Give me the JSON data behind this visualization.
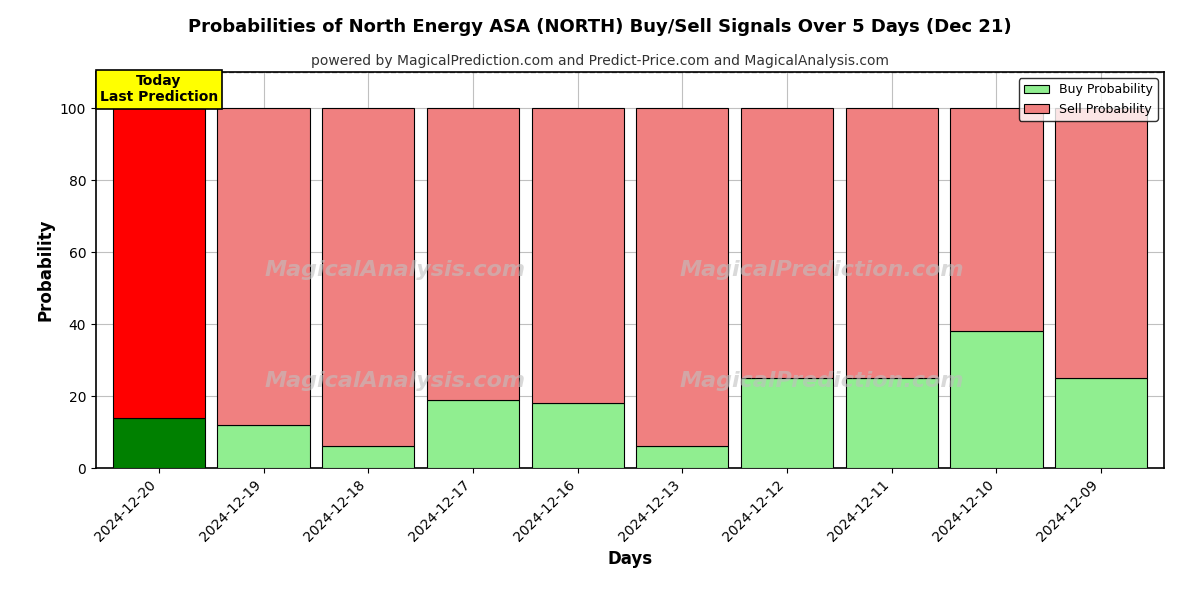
{
  "title": "Probabilities of North Energy ASA (NORTH) Buy/Sell Signals Over 5 Days (Dec 21)",
  "subtitle": "powered by MagicalPrediction.com and Predict-Price.com and MagicalAnalysis.com",
  "xlabel": "Days",
  "ylabel": "Probability",
  "categories": [
    "2024-12-20",
    "2024-12-19",
    "2024-12-18",
    "2024-12-17",
    "2024-12-16",
    "2024-12-13",
    "2024-12-12",
    "2024-12-11",
    "2024-12-10",
    "2024-12-09"
  ],
  "buy_values": [
    14,
    12,
    6,
    19,
    18,
    6,
    25,
    25,
    38,
    25
  ],
  "sell_values": [
    86,
    88,
    94,
    81,
    82,
    94,
    75,
    75,
    62,
    75
  ],
  "today_idx": 0,
  "buy_color_today": "#008000",
  "sell_color_today": "#FF0000",
  "buy_color_other": "#90EE90",
  "sell_color_other": "#F08080",
  "today_label": "Today\nLast Prediction",
  "today_box_color": "#FFFF00",
  "legend_buy_label": "Buy Probability",
  "legend_sell_label": "Sell Probability",
  "ylim": [
    0,
    110
  ],
  "yticks": [
    0,
    20,
    40,
    60,
    80,
    100
  ],
  "dashed_line_y": 110,
  "background_color": "#ffffff",
  "grid_color": "#c0c0c0",
  "bar_edge_color": "#000000",
  "bar_width": 0.88
}
